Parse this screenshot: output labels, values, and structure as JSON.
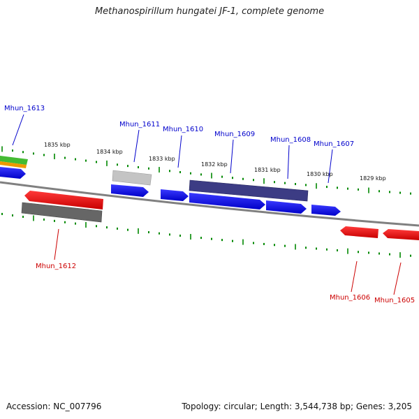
{
  "title": "Methanospirillum hungatei JF-1, complete genome",
  "footer": {
    "accession": "Accession: NC_007796",
    "summary": "Topology: circular; Length: 3,544,738 bp; Genes: 3,205"
  },
  "kbp_labels": [
    "1835 kbp",
    "1834 kbp",
    "1833 kbp",
    "1832 kbp",
    "1831 kbp",
    "1830 kbp",
    "1829 kbp"
  ],
  "gene_labels": {
    "forward": [
      "Mhun_1613",
      "Mhun_1611",
      "Mhun_1610",
      "Mhun_1609",
      "Mhun_1608",
      "Mhun_1607"
    ],
    "reverse": [
      "Mhun_1612",
      "Mhun_1606",
      "Mhun_1605"
    ]
  },
  "colors": {
    "forward_gene": "#0000ee",
    "reverse_gene": "#ee0000",
    "feature_dark": "#3a3a80",
    "feature_gray": "#bbbbbb",
    "backbone": "#888888",
    "tick": "#008800",
    "label_forward": "#0000cc",
    "label_reverse": "#cc0000"
  }
}
